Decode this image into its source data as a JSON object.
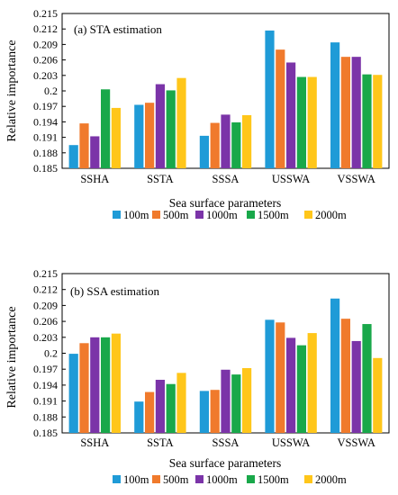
{
  "colors": [
    "#1f9bd7",
    "#f07a2c",
    "#7b34a8",
    "#19a84a",
    "#ffc61a"
  ],
  "chart_data": [
    {
      "type": "bar",
      "title": "(a) STA estimation",
      "xlabel": "Sea surface parameters",
      "ylabel": "Relative importance",
      "ylim": [
        0.185,
        0.215
      ],
      "yticks": [
        "0.185",
        "0.188",
        "0.191",
        "0.194",
        "0.197",
        "0.2",
        "0.203",
        "0.206",
        "0.209",
        "0.212",
        "0.215"
      ],
      "categories": [
        "SSHA",
        "SSTA",
        "SSSA",
        "USSWA",
        "VSSWA"
      ],
      "series": [
        {
          "name": "100m",
          "values": [
            0.1895,
            0.1973,
            0.1913,
            0.2117,
            0.2094
          ]
        },
        {
          "name": "500m",
          "values": [
            0.1937,
            0.1977,
            0.1938,
            0.208,
            0.2066
          ]
        },
        {
          "name": "1000m",
          "values": [
            0.1912,
            0.2013,
            0.1954,
            0.2055,
            0.2066
          ]
        },
        {
          "name": "1500m",
          "values": [
            0.2003,
            0.2001,
            0.1939,
            0.2027,
            0.2032
          ]
        },
        {
          "name": "2000m",
          "values": [
            0.1967,
            0.2025,
            0.1953,
            0.2027,
            0.2031
          ]
        }
      ],
      "legend_position": "bottom"
    },
    {
      "type": "bar",
      "title": "(b) SSA estimation",
      "xlabel": "Sea surface parameters",
      "ylabel": "Relative importance",
      "ylim": [
        0.185,
        0.215
      ],
      "yticks": [
        "0.185",
        "0.188",
        "0.191",
        "0.194",
        "0.197",
        "0.2",
        "0.203",
        "0.206",
        "0.209",
        "0.212",
        "0.215"
      ],
      "categories": [
        "SSHA",
        "SSTA",
        "SSSA",
        "USSWA",
        "VSSWA"
      ],
      "series": [
        {
          "name": "100m",
          "values": [
            0.1999,
            0.1909,
            0.1929,
            0.2063,
            0.2103
          ]
        },
        {
          "name": "500m",
          "values": [
            0.2019,
            0.1927,
            0.1931,
            0.2058,
            0.2065
          ]
        },
        {
          "name": "1000m",
          "values": [
            0.203,
            0.195,
            0.1969,
            0.2029,
            0.2023
          ]
        },
        {
          "name": "1500m",
          "values": [
            0.203,
            0.1942,
            0.196,
            0.2015,
            0.2055
          ]
        },
        {
          "name": "2000m",
          "values": [
            0.2037,
            0.1963,
            0.1972,
            0.2038,
            0.1991
          ]
        }
      ],
      "legend_position": "bottom"
    }
  ]
}
